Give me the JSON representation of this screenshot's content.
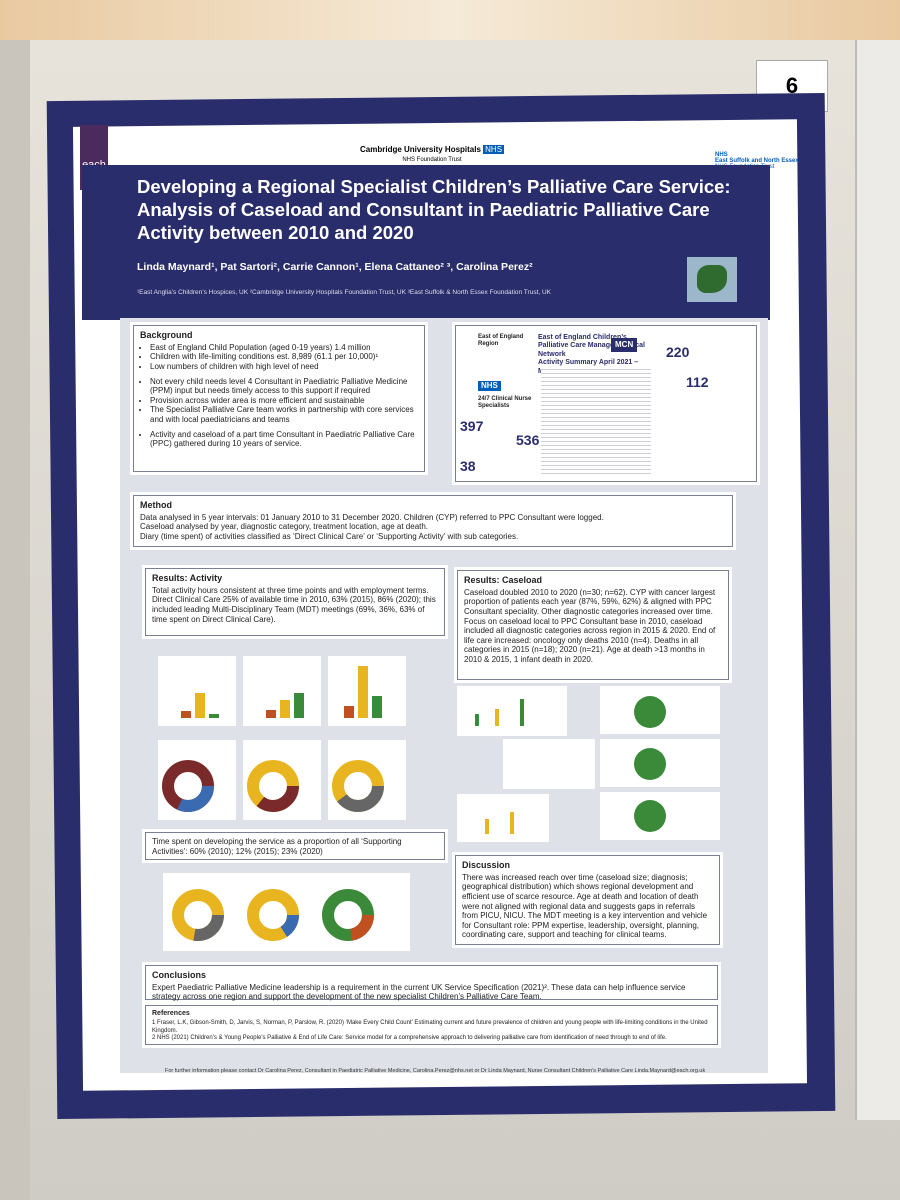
{
  "board_number": "6",
  "header": {
    "left_logo": "each",
    "org": "Cambridge University Hospitals",
    "nhs": "NHS",
    "org_sub": "NHS Foundation Trust",
    "right_org": "East Suffolk and North Essex",
    "title": "Developing a Regional Specialist Children’s Palliative Care Service: Analysis of Caseload and Consultant in Paediatric Palliative Care Activity between 2010 and 2020",
    "authors": "Linda Maynard¹, Pat Sartori², Carrie Cannon¹, Elena Cattaneo² ³, Carolina Perez²",
    "affiliations": "¹East Anglia’s Children’s Hospices, UK ²Cambridge University Hospitals Foundation Trust, UK ³East Suffolk & North Essex Foundation Trust, UK"
  },
  "background": {
    "title": "Background",
    "items": [
      "East of England Child Population (aged 0-19 years) 1.4 million",
      "Children with life-limiting conditions est. 8,989 (61.1 per 10,000)¹",
      "Low numbers of children with high level of need",
      "Not every child needs level 4 Consultant in Paediatric Palliative Medicine (PPM) input but needs timely access to this support if required",
      "Provision across wider area is more efficient and sustainable",
      "The Specialist Palliative Care team works in partnership with core services and with local paediatricians and teams",
      "Activity and caseload of a part time Consultant in Paediatric Palliative Care (PPC) gathered during 10 years of service."
    ]
  },
  "infographic": {
    "region": "East of England Region",
    "title": "East of England Children’s Palliative Care Managed Clinical Network",
    "period": "Activity Summary April 2021 – March 2022",
    "badge": "MCN",
    "cns": "24/7 Clinical Nurse Specialists",
    "stats": [
      "397",
      "536",
      "38",
      "220",
      "112"
    ]
  },
  "method": {
    "title": "Method",
    "lines": [
      "Data analysed in 5 year intervals: 01 January 2010 to 31 December 2020. Children (CYP) referred to PPC Consultant were logged.",
      "Caseload analysed by year, diagnostic category, treatment location, age at death.",
      "Diary (time spent) of activities classified as ‘Direct Clinical Care’ or ‘Supporting Activity’ with sub categories."
    ]
  },
  "results_activity": {
    "title": "Results: Activity",
    "text": "Total activity hours consistent at three time points and with employment terms. Direct Clinical Care 25% of available time in 2010, 63% (2015), 86% (2020); this included leading Multi-Disciplinary Team (MDT) meetings (69%, 36%, 63% of time spent on Direct Clinical Care).",
    "supporting": "Time spent on developing the service as a proportion of all ‘Supporting Activities’: 60% (2010); 12% (2015); 23% (2020)"
  },
  "results_caseload": {
    "title": "Results: Caseload",
    "text": "Caseload doubled 2010 to 2020 (n=30; n=62). CYP with cancer largest proportion of patients each year (87%, 59%, 62%) & aligned with PPC Consultant speciality. Other diagnostic categories increased over time. Focus on caseload local to PPC Consultant base in 2010, caseload included all diagnostic categories across region in 2015 & 2020. End of life care increased: oncology only deaths 2010 (n=4). Deaths in all categories in 2015 (n=18); 2020 (n=21). Age at death >13 months in 2010 & 2015, 1 infant death in 2020."
  },
  "discussion": {
    "title": "Discussion",
    "text": "There was increased reach over time (caseload size; diagnosis; geographical distribution) which shows regional development and efficient use of scarce resource. Age at death and location of death were not aligned with regional data and suggests gaps in referrals from PICU, NICU. The MDT meeting is a key intervention and vehicle for Consultant role: PPM expertise, leadership, oversight, planning, coordinating care, support and teaching for clinical teams."
  },
  "conclusions": {
    "title": "Conclusions",
    "text": "Expert Paediatric Palliative Medicine leadership is a requirement in the current UK Service Specification (2021)². These data can help influence service strategy across one region and support the development of the new specialist Children’s Palliative Care Team."
  },
  "references": {
    "title": "References",
    "lines": [
      "1 Fraser, L.K, Gibson-Smith, D, Jarvis, S, Norman, P, Parslow, R. (2020) ‘Make Every Child Count’ Estimating current and future prevalence of children and young people with life-limiting conditions in the United Kingdom.",
      "2 NHS (2021) Children’s & Young People’s Palliative & End of Life Care: Service model for a comprehensive approach to delivering palliative care from identification of need through to end of life."
    ]
  },
  "footer": "For further information please contact Dr Carolina Perez, Consultant in Paediatric Palliative Medicine, Carolina.Perez@nhs.net or Dr Linda Maynard, Nurse Consultant Children’s Palliative Care Linda.Maynard@each.org.uk"
}
